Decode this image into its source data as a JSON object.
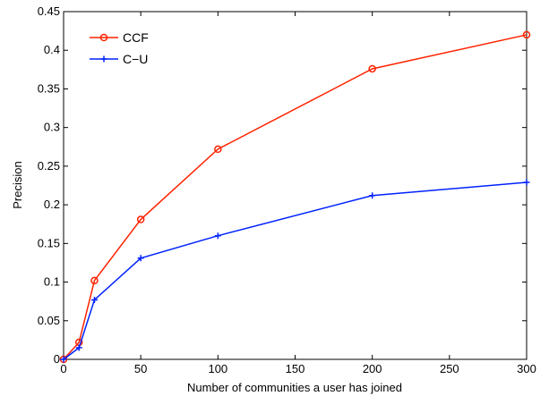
{
  "chart_data": {
    "type": "line",
    "xlabel": "Number of communities a user has joined",
    "ylabel": "Precision",
    "xlim": [
      0,
      300
    ],
    "ylim": [
      0,
      0.45
    ],
    "xticks": [
      "0",
      "50",
      "100",
      "150",
      "200",
      "250",
      "300"
    ],
    "yticks": [
      "0",
      "0.05",
      "0.1",
      "0.15",
      "0.2",
      "0.25",
      "0.3",
      "0.35",
      "0.4",
      "0.45"
    ],
    "grid": false,
    "legend_position": "top-left",
    "series": [
      {
        "name": "CCF",
        "color": "#ff2200",
        "marker": "circle",
        "x": [
          0,
          10,
          20,
          50,
          100,
          200,
          300
        ],
        "y": [
          0,
          0.022,
          0.102,
          0.181,
          0.272,
          0.376,
          0.42
        ]
      },
      {
        "name": "C−U",
        "color": "#0022ff",
        "marker": "plus",
        "x": [
          0,
          10,
          20,
          50,
          100,
          200,
          300
        ],
        "y": [
          0,
          0.015,
          0.077,
          0.131,
          0.16,
          0.212,
          0.229
        ]
      }
    ]
  }
}
